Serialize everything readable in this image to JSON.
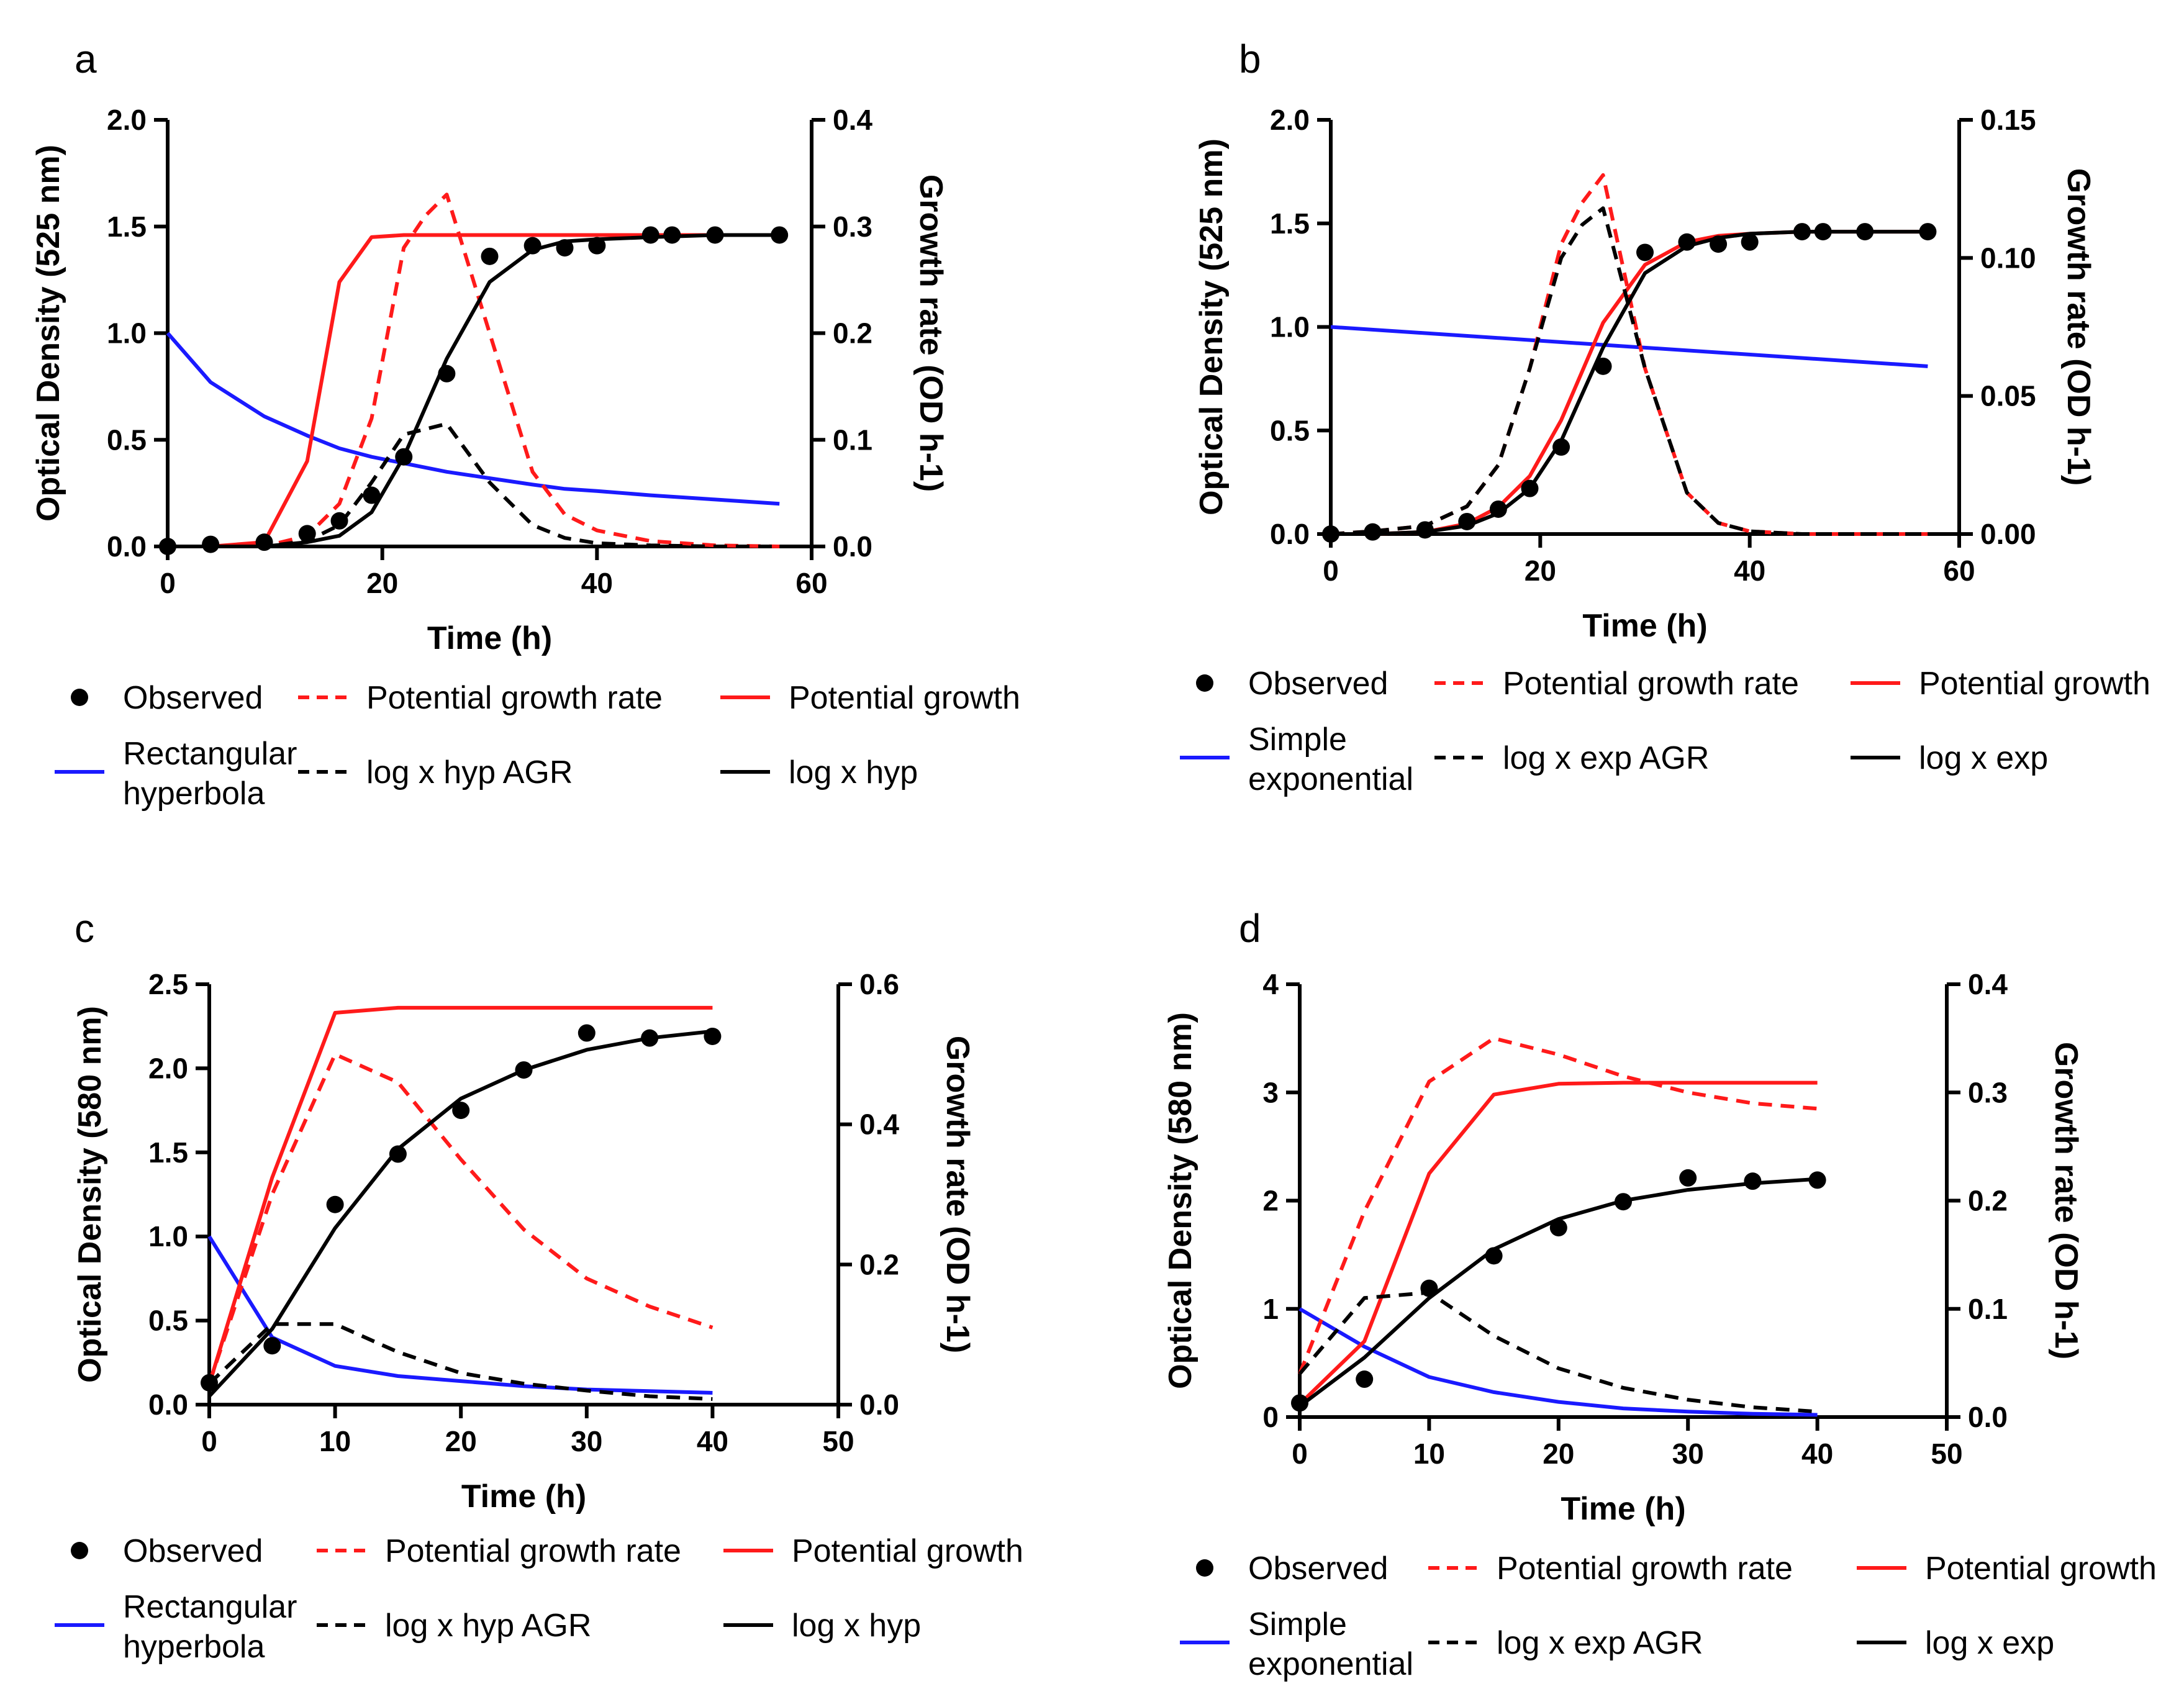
{
  "colors": {
    "red": "#ff1a1a",
    "blue": "#1a1aff",
    "black": "#000000"
  },
  "chart_data": [
    {
      "type": "line",
      "panel": "a",
      "xlabel": "Time (h)",
      "ylabel": "Optical Density (525 nm)",
      "y2label": "Growth rate (OD h-1)",
      "xlim": [
        0,
        60
      ],
      "ylim": [
        0,
        2.0
      ],
      "y2lim": [
        0,
        0.4
      ],
      "xticks": [
        "0",
        "20",
        "40",
        "60"
      ],
      "yticks": [
        "0.0",
        "0.5",
        "1.0",
        "1.5",
        "2.0"
      ],
      "y2ticks": [
        "0.0",
        "0.1",
        "0.2",
        "0.3",
        "0.4"
      ],
      "observed": {
        "x": [
          0,
          4,
          9,
          13,
          16,
          19,
          22,
          26,
          30,
          34,
          37,
          40,
          45,
          47,
          51,
          57
        ],
        "y": [
          0.0,
          0.01,
          0.02,
          0.06,
          0.12,
          0.24,
          0.42,
          0.81,
          1.36,
          1.41,
          1.4,
          1.41,
          1.46,
          1.46,
          1.46,
          1.46
        ]
      },
      "series": [
        {
          "name": "Rectangular hyperbola",
          "color": "blue",
          "dash": false,
          "axis": "left",
          "x": [
            0,
            4,
            9,
            13,
            16,
            19,
            22,
            26,
            30,
            34,
            37,
            40,
            45,
            51,
            57
          ],
          "y": [
            1.0,
            0.77,
            0.61,
            0.52,
            0.46,
            0.42,
            0.39,
            0.35,
            0.32,
            0.29,
            0.27,
            0.26,
            0.24,
            0.22,
            0.2
          ]
        },
        {
          "name": "Potential growth",
          "color": "red",
          "dash": false,
          "axis": "left",
          "x": [
            0,
            4,
            9,
            13,
            16,
            19,
            22,
            26,
            57
          ],
          "y": [
            0,
            0,
            0.02,
            0.4,
            1.24,
            1.45,
            1.46,
            1.46,
            1.46
          ]
        },
        {
          "name": "Potential growth rate",
          "color": "red",
          "dash": true,
          "axis": "right",
          "x": [
            0,
            4,
            9,
            13,
            16,
            19,
            22,
            24,
            26,
            30,
            34,
            37,
            40,
            45,
            51,
            57
          ],
          "y": [
            0,
            0,
            0.0,
            0.01,
            0.04,
            0.12,
            0.28,
            0.31,
            0.33,
            0.2,
            0.07,
            0.03,
            0.015,
            0.005,
            0.001,
            0
          ]
        },
        {
          "name": "log x hyp AGR",
          "color": "black",
          "dash": true,
          "axis": "right",
          "x": [
            0,
            4,
            9,
            13,
            16,
            19,
            22,
            24,
            26,
            30,
            34,
            37,
            40,
            45,
            51,
            57
          ],
          "y": [
            0,
            0,
            0.0,
            0.005,
            0.02,
            0.06,
            0.105,
            0.11,
            0.115,
            0.06,
            0.02,
            0.008,
            0.003,
            0.001,
            0,
            0
          ]
        },
        {
          "name": "log x hyp",
          "color": "black",
          "dash": false,
          "axis": "left",
          "x": [
            0,
            4,
            9,
            13,
            16,
            19,
            22,
            26,
            30,
            34,
            37,
            40,
            45,
            51,
            57
          ],
          "y": [
            0,
            0,
            0.0,
            0.02,
            0.05,
            0.16,
            0.42,
            0.88,
            1.24,
            1.39,
            1.43,
            1.44,
            1.45,
            1.46,
            1.46
          ]
        }
      ],
      "legend": [
        {
          "label": "Observed",
          "kind": "dot",
          "color": "black"
        },
        {
          "label": "Potential growth rate",
          "kind": "dash",
          "color": "red"
        },
        {
          "label": "Potential growth",
          "kind": "line",
          "color": "red"
        },
        {
          "label": "Rectangular",
          "label2": "hyperbola",
          "kind": "line",
          "color": "blue"
        },
        {
          "label": "log x hyp AGR",
          "kind": "dash",
          "color": "black"
        },
        {
          "label": "log x hyp",
          "kind": "line",
          "color": "black"
        }
      ]
    },
    {
      "type": "line",
      "panel": "b",
      "xlabel": "Time (h)",
      "ylabel": "Optical Density (525 nm)",
      "y2label": "Growth rate (OD h-1)",
      "xlim": [
        0,
        60
      ],
      "ylim": [
        0,
        2.0
      ],
      "y2lim": [
        0,
        0.15
      ],
      "xticks": [
        "0",
        "20",
        "40",
        "60"
      ],
      "yticks": [
        "0.0",
        "0.5",
        "1.0",
        "1.5",
        "2.0"
      ],
      "y2ticks": [
        "0.00",
        "0.05",
        "0.10",
        "0.15"
      ],
      "observed": {
        "x": [
          0,
          4,
          9,
          13,
          16,
          19,
          22,
          26,
          30,
          34,
          37,
          40,
          45,
          47,
          51,
          57
        ],
        "y": [
          0.0,
          0.01,
          0.02,
          0.06,
          0.12,
          0.22,
          0.42,
          0.81,
          1.36,
          1.41,
          1.4,
          1.41,
          1.46,
          1.46,
          1.46,
          1.46
        ]
      },
      "series": [
        {
          "name": "Simple exponential",
          "color": "blue",
          "dash": false,
          "axis": "left",
          "x": [
            0,
            57
          ],
          "y": [
            1.0,
            0.81
          ]
        },
        {
          "name": "Potential growth",
          "color": "red",
          "dash": false,
          "axis": "left",
          "x": [
            0,
            4,
            9,
            13,
            16,
            19,
            22,
            26,
            30,
            34,
            37,
            40,
            45,
            51,
            57
          ],
          "y": [
            0,
            0,
            0.01,
            0.05,
            0.13,
            0.28,
            0.55,
            1.02,
            1.3,
            1.41,
            1.44,
            1.45,
            1.46,
            1.46,
            1.46
          ]
        },
        {
          "name": "Potential growth rate",
          "color": "red",
          "dash": true,
          "axis": "right",
          "x": [
            0,
            4,
            9,
            13,
            16,
            19,
            22,
            24,
            26,
            30,
            34,
            37,
            40,
            45,
            51,
            57
          ],
          "y": [
            0,
            0.001,
            0.003,
            0.01,
            0.025,
            0.06,
            0.105,
            0.12,
            0.13,
            0.06,
            0.015,
            0.004,
            0.001,
            0,
            0,
            0
          ]
        },
        {
          "name": "log x exp AGR",
          "color": "black",
          "dash": true,
          "axis": "right",
          "x": [
            0,
            4,
            9,
            13,
            16,
            19,
            22,
            24,
            26,
            30,
            34,
            37,
            40,
            45,
            51,
            57
          ],
          "y": [
            0,
            0.001,
            0.003,
            0.01,
            0.025,
            0.06,
            0.1,
            0.112,
            0.118,
            0.06,
            0.015,
            0.004,
            0.001,
            0,
            0,
            0
          ]
        },
        {
          "name": "log x exp",
          "color": "black",
          "dash": false,
          "axis": "left",
          "x": [
            0,
            4,
            9,
            13,
            16,
            19,
            22,
            26,
            30,
            34,
            37,
            40,
            45,
            51,
            57
          ],
          "y": [
            0,
            0,
            0.01,
            0.04,
            0.1,
            0.22,
            0.45,
            0.9,
            1.26,
            1.39,
            1.43,
            1.45,
            1.46,
            1.46,
            1.46
          ]
        }
      ],
      "legend": [
        {
          "label": "Observed",
          "kind": "dot",
          "color": "black"
        },
        {
          "label": "Potential growth rate",
          "kind": "dash",
          "color": "red"
        },
        {
          "label": "Potential growth",
          "kind": "line",
          "color": "red"
        },
        {
          "label": "Simple",
          "label2": "exponential",
          "kind": "line",
          "color": "blue"
        },
        {
          "label": "log x exp AGR",
          "kind": "dash",
          "color": "black"
        },
        {
          "label": "log x exp",
          "kind": "line",
          "color": "black"
        }
      ]
    },
    {
      "type": "line",
      "panel": "c",
      "xlabel": "Time (h)",
      "ylabel": "Optical Density (580 nm)",
      "y2label": "Growth rate (OD h-1)",
      "xlim": [
        0,
        50
      ],
      "ylim": [
        0,
        2.5
      ],
      "y2lim": [
        0,
        0.6
      ],
      "xticks": [
        "0",
        "10",
        "20",
        "30",
        "40",
        "50"
      ],
      "yticks": [
        "0.0",
        "0.5",
        "1.0",
        "1.5",
        "2.0",
        "2.5"
      ],
      "y2ticks": [
        "0.0",
        "0.2",
        "0.4",
        "0.6"
      ],
      "observed": {
        "x": [
          0,
          5,
          10,
          15,
          20,
          25,
          30,
          35,
          40
        ],
        "y": [
          0.13,
          0.35,
          1.19,
          1.49,
          1.75,
          1.99,
          2.21,
          2.18,
          2.19
        ]
      },
      "series": [
        {
          "name": "Rectangular hyperbola",
          "color": "blue",
          "dash": false,
          "axis": "left",
          "x": [
            0,
            5,
            10,
            15,
            20,
            25,
            30,
            35,
            40
          ],
          "y": [
            1.0,
            0.4,
            0.23,
            0.17,
            0.14,
            0.11,
            0.09,
            0.08,
            0.07
          ]
        },
        {
          "name": "Potential growth",
          "color": "red",
          "dash": false,
          "axis": "left",
          "x": [
            0,
            5,
            10,
            15,
            20,
            25,
            30,
            35,
            40
          ],
          "y": [
            0.12,
            1.35,
            2.33,
            2.36,
            2.36,
            2.36,
            2.36,
            2.36,
            2.36
          ]
        },
        {
          "name": "Potential growth rate",
          "color": "red",
          "dash": true,
          "axis": "right",
          "x": [
            0,
            5,
            10,
            15,
            20,
            25,
            30,
            35,
            40
          ],
          "y": [
            0.03,
            0.3,
            0.5,
            0.46,
            0.35,
            0.25,
            0.18,
            0.14,
            0.11
          ]
        },
        {
          "name": "log x hyp AGR",
          "color": "black",
          "dash": true,
          "axis": "right",
          "x": [
            0,
            5,
            10,
            15,
            20,
            25,
            30,
            35,
            40
          ],
          "y": [
            0.03,
            0.115,
            0.115,
            0.075,
            0.045,
            0.03,
            0.02,
            0.012,
            0.008
          ]
        },
        {
          "name": "log x hyp",
          "color": "black",
          "dash": false,
          "axis": "left",
          "x": [
            0,
            5,
            10,
            15,
            20,
            25,
            30,
            35,
            40
          ],
          "y": [
            0.05,
            0.45,
            1.05,
            1.52,
            1.82,
            1.99,
            2.11,
            2.18,
            2.22
          ]
        }
      ],
      "legend": [
        {
          "label": "Observed",
          "kind": "dot",
          "color": "black"
        },
        {
          "label": "Potential growth rate",
          "kind": "dash",
          "color": "red"
        },
        {
          "label": "Potential growth",
          "kind": "line",
          "color": "red"
        },
        {
          "label": "Rectangular",
          "label2": "hyperbola",
          "kind": "line",
          "color": "blue"
        },
        {
          "label": "log x hyp AGR",
          "kind": "dash",
          "color": "black"
        },
        {
          "label": "log x hyp",
          "kind": "line",
          "color": "black"
        }
      ]
    },
    {
      "type": "line",
      "panel": "d",
      "xlabel": "Time (h)",
      "ylabel": "Optical Density (580 nm)",
      "y2label": "Growth rate (OD h-1)",
      "xlim": [
        0,
        50
      ],
      "ylim": [
        0,
        4
      ],
      "y2lim": [
        0,
        0.4
      ],
      "xticks": [
        "0",
        "10",
        "20",
        "30",
        "40",
        "50"
      ],
      "yticks": [
        "0",
        "1",
        "2",
        "3",
        "4"
      ],
      "y2ticks": [
        "0.0",
        "0.1",
        "0.2",
        "0.3",
        "0.4"
      ],
      "observed": {
        "x": [
          0,
          5,
          10,
          15,
          20,
          25,
          30,
          35,
          40
        ],
        "y": [
          0.13,
          0.35,
          1.19,
          1.49,
          1.75,
          1.99,
          2.21,
          2.18,
          2.19
        ]
      },
      "series": [
        {
          "name": "Simple exponential",
          "color": "blue",
          "dash": false,
          "axis": "left",
          "x": [
            0,
            5,
            10,
            15,
            20,
            25,
            30,
            35,
            40
          ],
          "y": [
            1.0,
            0.65,
            0.37,
            0.23,
            0.14,
            0.08,
            0.05,
            0.03,
            0.02
          ]
        },
        {
          "name": "Potential growth",
          "color": "red",
          "dash": false,
          "axis": "left",
          "x": [
            0,
            5,
            10,
            15,
            20,
            25,
            30,
            35,
            40
          ],
          "y": [
            0.12,
            0.7,
            2.25,
            2.98,
            3.08,
            3.09,
            3.09,
            3.09,
            3.09
          ]
        },
        {
          "name": "Potential growth rate",
          "color": "red",
          "dash": true,
          "axis": "right",
          "x": [
            0,
            5,
            10,
            15,
            20,
            25,
            30,
            35,
            40
          ],
          "y": [
            0.04,
            0.19,
            0.31,
            0.35,
            0.335,
            0.315,
            0.3,
            0.29,
            0.285
          ]
        },
        {
          "name": "log x exp AGR",
          "color": "black",
          "dash": true,
          "axis": "right",
          "x": [
            0,
            5,
            10,
            15,
            20,
            25,
            30,
            35,
            40
          ],
          "y": [
            0.04,
            0.11,
            0.115,
            0.075,
            0.045,
            0.027,
            0.016,
            0.009,
            0.005
          ]
        },
        {
          "name": "log x exp",
          "color": "black",
          "dash": false,
          "axis": "left",
          "x": [
            0,
            5,
            10,
            15,
            20,
            25,
            30,
            35,
            40
          ],
          "y": [
            0.1,
            0.55,
            1.1,
            1.55,
            1.83,
            2.0,
            2.1,
            2.16,
            2.2
          ]
        }
      ],
      "legend": [
        {
          "label": "Observed",
          "kind": "dot",
          "color": "black"
        },
        {
          "label": "Potential growth rate",
          "kind": "dash",
          "color": "red"
        },
        {
          "label": "Potential growth",
          "kind": "line",
          "color": "red"
        },
        {
          "label": "Simple",
          "label2": "exponential",
          "kind": "line",
          "color": "blue"
        },
        {
          "label": "log x exp AGR",
          "kind": "dash",
          "color": "black"
        },
        {
          "label": "log x exp",
          "kind": "line",
          "color": "black"
        }
      ]
    }
  ]
}
